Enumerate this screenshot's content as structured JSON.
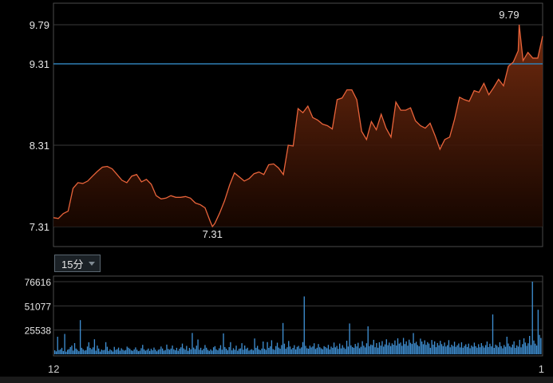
{
  "chart_data": [
    {
      "type": "area",
      "y_ticks": [
        "9.79",
        "9.31",
        "8.31",
        "7.31"
      ],
      "y_tick_values": [
        9.79,
        9.31,
        8.31,
        7.31
      ],
      "ylim": [
        7.31,
        9.79
      ],
      "reference_line": 9.31,
      "annotations": [
        {
          "label": "9.79",
          "x": 0.952,
          "value": 9.79
        },
        {
          "label": "7.31",
          "x": 0.325,
          "value": 7.31
        }
      ],
      "colors": {
        "line": "#e8633a",
        "fill_top": "#6e2a10",
        "reference": "#2f7fb5",
        "grid": "#3a3a3a"
      },
      "series": [
        {
          "x": [
            0,
            0.01,
            0.02,
            0.03,
            0.04,
            0.05,
            0.06,
            0.07,
            0.08,
            0.09,
            0.1,
            0.11,
            0.12,
            0.13,
            0.14,
            0.15,
            0.16,
            0.17,
            0.18,
            0.19,
            0.2,
            0.21,
            0.22,
            0.23,
            0.24,
            0.25,
            0.26,
            0.27,
            0.28,
            0.29,
            0.3,
            0.31,
            0.32,
            0.325,
            0.33,
            0.34,
            0.35,
            0.36,
            0.37,
            0.38,
            0.39,
            0.4,
            0.41,
            0.42,
            0.43,
            0.44,
            0.45,
            0.46,
            0.47,
            0.48,
            0.49,
            0.5,
            0.51,
            0.52,
            0.53,
            0.54,
            0.55,
            0.56,
            0.57,
            0.58,
            0.59,
            0.6,
            0.61,
            0.62,
            0.63,
            0.64,
            0.65,
            0.66,
            0.67,
            0.68,
            0.69,
            0.7,
            0.71,
            0.72,
            0.73,
            0.74,
            0.75,
            0.76,
            0.77,
            0.78,
            0.79,
            0.8,
            0.81,
            0.82,
            0.83,
            0.84,
            0.85,
            0.86,
            0.87,
            0.88,
            0.89,
            0.9,
            0.91,
            0.92,
            0.93,
            0.94,
            0.95,
            0.952,
            0.96,
            0.97,
            0.98,
            0.99,
            1.0
          ],
          "values": [
            7.42,
            7.41,
            7.47,
            7.5,
            7.78,
            7.85,
            7.84,
            7.87,
            7.93,
            7.99,
            8.04,
            8.05,
            8.02,
            7.95,
            7.88,
            7.85,
            7.93,
            7.95,
            7.86,
            7.89,
            7.83,
            7.69,
            7.65,
            7.66,
            7.69,
            7.67,
            7.67,
            7.68,
            7.66,
            7.6,
            7.58,
            7.54,
            7.38,
            7.31,
            7.35,
            7.48,
            7.63,
            7.82,
            7.97,
            7.92,
            7.87,
            7.9,
            7.96,
            7.98,
            7.95,
            8.07,
            8.08,
            8.03,
            7.95,
            8.31,
            8.3,
            8.76,
            8.71,
            8.79,
            8.65,
            8.62,
            8.57,
            8.55,
            8.51,
            8.87,
            8.89,
            8.99,
            8.99,
            8.87,
            8.48,
            8.38,
            8.6,
            8.5,
            8.69,
            8.52,
            8.41,
            8.84,
            8.74,
            8.74,
            8.77,
            8.61,
            8.55,
            8.52,
            8.58,
            8.43,
            8.26,
            8.38,
            8.41,
            8.63,
            8.9,
            8.87,
            8.85,
            8.98,
            8.96,
            9.07,
            8.93,
            9.02,
            9.12,
            9.04,
            9.28,
            9.33,
            9.47,
            9.79,
            9.35,
            9.45,
            9.38,
            9.38,
            9.65
          ]
        }
      ]
    },
    {
      "type": "bar",
      "y_ticks": [
        "76616",
        "51077",
        "25538"
      ],
      "y_tick_values": [
        76616,
        51077,
        25538
      ],
      "ylim": [
        0,
        76616
      ],
      "x_labels": [
        "12",
        "1"
      ],
      "colors": {
        "bar": "#3f8fd2",
        "grid": "#3a3a3a"
      },
      "values": [
        4200,
        3100,
        18500,
        4500,
        5200,
        6800,
        3400,
        21500,
        2800,
        4700,
        5500,
        7600,
        9200,
        3900,
        11800,
        6100,
        4800,
        3300,
        36000,
        6800,
        5100,
        3900,
        4400,
        8200,
        12600,
        6700,
        5400,
        7300,
        15800,
        3800,
        9200,
        6100,
        2900,
        5000,
        4200,
        4600,
        12800,
        7900,
        3500,
        5200,
        4100,
        2900,
        7800,
        4600,
        5400,
        7100,
        3800,
        6300,
        4800,
        3900,
        4500,
        8100,
        6900,
        5700,
        4100,
        3600,
        5100,
        7200,
        4800,
        3300,
        3800,
        6400,
        9900,
        5200,
        3800,
        4600,
        6100,
        3500,
        5800,
        4200,
        7100,
        4900,
        3200,
        4700,
        5400,
        8200,
        6100,
        3900,
        4500,
        10200,
        5600,
        4800,
        6100,
        9200,
        5300,
        4200,
        6800,
        3700,
        5900,
        7400,
        11300,
        6200,
        4900,
        8800,
        3600,
        6700,
        5200,
        22500,
        7100,
        5500,
        9100,
        15600,
        4800,
        6800,
        4200,
        5800,
        9800,
        6900,
        4700,
        3600,
        5200,
        3900,
        7400,
        8600,
        5100,
        4200,
        6300,
        9600,
        4800,
        22100,
        7700,
        5900,
        4200,
        7600,
        12800,
        4100,
        6400,
        4800,
        9100,
        3800,
        5700,
        6200,
        11700,
        4900,
        9300,
        5600,
        6900,
        3900,
        4700,
        5400,
        4100,
        16700,
        6800,
        8900,
        5200,
        4300,
        6100,
        13500,
        5800,
        4600,
        12900,
        6700,
        8400,
        14800,
        5500,
        4700,
        8700,
        12200,
        7100,
        5900,
        9800,
        33000,
        11200,
        5800,
        7400,
        14100,
        8200,
        5300,
        6700,
        9600,
        5100,
        7800,
        8800,
        6100,
        7300,
        12900,
        61000,
        8900,
        6400,
        5900,
        9100,
        7200,
        8300,
        11600,
        5600,
        6900,
        10800,
        7400,
        6200,
        5300,
        8600,
        7700,
        6400,
        9900,
        5100,
        8100,
        6800,
        12400,
        7300,
        8800,
        5700,
        11300,
        6200,
        9600,
        7100,
        5600,
        14300,
        8200,
        32500,
        9400,
        7600,
        6800,
        10900,
        8300,
        12100,
        6400,
        7900,
        13800,
        9100,
        7200,
        11600,
        29500,
        8600,
        10300,
        9700,
        15200,
        7400,
        11800,
        6900,
        12700,
        9200,
        13900,
        8100,
        10400,
        15800,
        9600,
        12300,
        8700,
        11500,
        10100,
        14600,
        9300,
        16800,
        11200,
        12400,
        8900,
        17300,
        10800,
        13600,
        9100,
        15400,
        12100,
        10900,
        22400,
        11700,
        13200,
        9800,
        8400,
        16500,
        13500,
        10600,
        14700,
        9900,
        12800,
        11300,
        6800,
        15100,
        10200,
        13600,
        7500,
        11900,
        9400,
        14200,
        10700,
        8600,
        12400,
        8200,
        9600,
        14900,
        7300,
        10100,
        8700,
        13200,
        7800,
        9500,
        11400,
        7200,
        12600,
        6900,
        8800,
        10500,
        7700,
        11200,
        6400,
        9300,
        7900,
        12300,
        8500,
        6900,
        10600,
        7400,
        11800,
        8900,
        7100,
        9700,
        13500,
        7600,
        11100,
        8300,
        42000,
        6700,
        10200,
        9100,
        7400,
        12700,
        8600,
        6300,
        9800,
        7900,
        18500,
        11400,
        8500,
        7200,
        10300,
        13700,
        6800,
        9400,
        8100,
        15200,
        7300,
        10700,
        16800,
        12400,
        8900,
        11600,
        19400,
        9800,
        81000,
        14500,
        11200,
        9300,
        47000,
        20500,
        17200
      ]
    }
  ]
}
